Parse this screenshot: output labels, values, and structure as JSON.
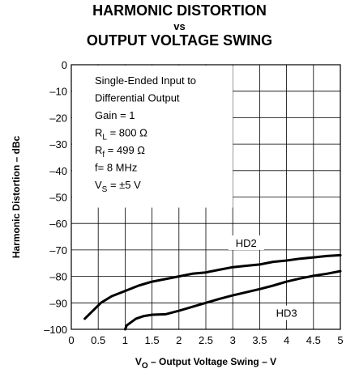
{
  "chart_data": {
    "type": "line",
    "title": [
      "HARMONIC DISTORTION",
      "vs",
      "OUTPUT VOLTAGE SWING"
    ],
    "xlabel": {
      "main": "V",
      "sub": "O",
      "rest": " – Output Voltage Swing – V"
    },
    "ylabel": "Harmonic Distortion – dBc",
    "xlim": [
      0,
      5
    ],
    "ylim": [
      -100,
      0
    ],
    "grid": true,
    "x_ticks": [
      {
        "v": 0,
        "label": "0"
      },
      {
        "v": 0.5,
        "label": "0.5"
      },
      {
        "v": 1,
        "label": "1"
      },
      {
        "v": 1.5,
        "label": "1.5"
      },
      {
        "v": 2,
        "label": "2"
      },
      {
        "v": 2.5,
        "label": "2.5"
      },
      {
        "v": 3,
        "label": "3"
      },
      {
        "v": 3.5,
        "label": "3.5"
      },
      {
        "v": 4,
        "label": "4"
      },
      {
        "v": 4.5,
        "label": "4.5"
      },
      {
        "v": 5,
        "label": "5"
      }
    ],
    "y_ticks": [
      {
        "v": 0,
        "label": "0"
      },
      {
        "v": -10,
        "label": "–10"
      },
      {
        "v": -20,
        "label": "–20"
      },
      {
        "v": -30,
        "label": "–30"
      },
      {
        "v": -40,
        "label": "–40"
      },
      {
        "v": -50,
        "label": "–50"
      },
      {
        "v": -60,
        "label": "–60"
      },
      {
        "v": -70,
        "label": "–70"
      },
      {
        "v": -80,
        "label": "–80"
      },
      {
        "v": -90,
        "label": "–90"
      },
      {
        "v": -100,
        "label": "–100"
      }
    ],
    "conditions": [
      {
        "main": "Single-Ended Input to"
      },
      {
        "main": "Differential Output"
      },
      {
        "main": "Gain = 1"
      },
      {
        "main": "R",
        "sub": "L",
        "rest": " = 800 Ω"
      },
      {
        "main": "R",
        "sub": "f",
        "rest": " = 499 Ω"
      },
      {
        "main": "f= 8 MHz"
      },
      {
        "main": "V",
        "sub": "S",
        "rest": " = ±5 V"
      }
    ],
    "series": [
      {
        "name": "HD2",
        "x": [
          0.25,
          0.4,
          0.55,
          0.75,
          1.0,
          1.25,
          1.5,
          1.75,
          2.0,
          2.25,
          2.5,
          2.75,
          3.0,
          3.25,
          3.5,
          3.75,
          4.0,
          4.25,
          4.5,
          4.75,
          5.0
        ],
        "y": [
          -96,
          -93,
          -90,
          -87.5,
          -85.5,
          -83.5,
          -82,
          -81,
          -80,
          -79,
          -78.5,
          -77.5,
          -76.5,
          -76,
          -75.5,
          -74.5,
          -74,
          -73.3,
          -72.8,
          -72.3,
          -72
        ]
      },
      {
        "name": "HD3",
        "x": [
          1.0,
          1.03,
          1.1,
          1.2,
          1.35,
          1.5,
          1.75,
          2.0,
          2.25,
          2.5,
          2.75,
          3.0,
          3.25,
          3.5,
          3.75,
          4.0,
          4.25,
          4.5,
          4.75,
          5.0
        ],
        "y": [
          -100,
          -98.5,
          -97.5,
          -96,
          -95,
          -94.5,
          -94.3,
          -93,
          -91.5,
          -90,
          -88.5,
          -87.2,
          -86,
          -84.8,
          -83.5,
          -82,
          -80.8,
          -79.8,
          -79,
          -78
        ]
      }
    ]
  }
}
